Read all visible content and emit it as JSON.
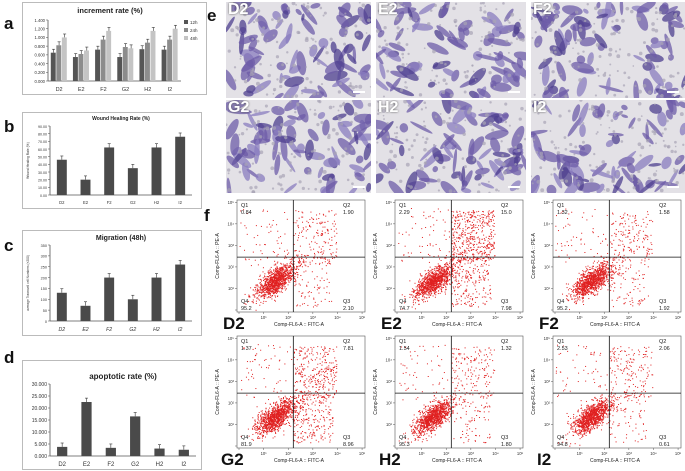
{
  "letters": {
    "a": "a",
    "b": "b",
    "c": "c",
    "d": "d",
    "e": "e",
    "f": "f"
  },
  "chart_data": [
    {
      "type": "bar",
      "title": "increment rate  (%)",
      "categories": [
        "D2",
        "E2",
        "F2",
        "G2",
        "H2",
        "I2"
      ],
      "series": [
        {
          "name": "12h",
          "values": [
            0.65,
            0.55,
            0.72,
            0.55,
            0.73,
            0.72
          ],
          "color": "#555555"
        },
        {
          "name": "24h",
          "values": [
            0.82,
            0.62,
            0.95,
            0.78,
            0.88,
            0.95
          ],
          "color": "#8c8c8c"
        },
        {
          "name": "48h",
          "values": [
            1.0,
            0.7,
            1.15,
            0.75,
            1.15,
            1.2
          ],
          "color": "#c4c4c4"
        }
      ],
      "yticks": [
        "0.000",
        "0.200",
        "0.400",
        "0.600",
        "0.800",
        "1.000",
        "1.200",
        "1.400"
      ],
      "ylim": [
        0,
        1.4
      ]
    },
    {
      "type": "bar",
      "title": "Wound Healing Rate  (%)",
      "ylabel": "Wound Healing Rate (%)",
      "categories": [
        "D2",
        "E2",
        "F2",
        "G2",
        "H2",
        "I2"
      ],
      "values": [
        46,
        20,
        62,
        35,
        62,
        76
      ],
      "yticks": [
        "0.00",
        "10.00",
        "20.00",
        "30.00",
        "40.00",
        "50.00",
        "60.00",
        "70.00",
        "80.00",
        "90.00"
      ],
      "ylim": [
        0,
        90
      ]
    },
    {
      "type": "bar",
      "title": "Migration (48h)",
      "ylabel": "average Transwell cell Numbers (×200)",
      "categories": [
        "D2",
        "E2",
        "F2",
        "G2",
        "H2",
        "I2"
      ],
      "values": [
        130,
        70,
        200,
        100,
        200,
        260
      ],
      "yticks": [
        "0",
        "50",
        "100",
        "150",
        "200",
        "250",
        "300",
        "350"
      ],
      "ylim": [
        0,
        350
      ]
    },
    {
      "type": "bar",
      "title": "apoptotic rate  (%)",
      "categories": [
        "D2",
        "E2",
        "F2",
        "G2",
        "H2",
        "I2"
      ],
      "values": [
        3.8,
        22.5,
        3.4,
        16.5,
        3.1,
        2.6
      ],
      "yticks": [
        "0.000",
        "5.000",
        "10.000",
        "15.000",
        "20.000",
        "25.000",
        "30.000"
      ],
      "ylim": [
        0,
        30
      ]
    }
  ],
  "micrographs": [
    {
      "label": "D2"
    },
    {
      "label": "E2"
    },
    {
      "label": "F2"
    },
    {
      "label": "G2"
    },
    {
      "label": "H2"
    },
    {
      "label": "I2"
    }
  ],
  "flow": {
    "xlabel": "Comp-FL6-A :: FITC-A",
    "ylabel": "Comp-FL6-A :: PE-A",
    "plots": [
      {
        "name": "D2",
        "q1": "0.84",
        "q2": "1.90",
        "q3": "2.10",
        "q4": "95.2"
      },
      {
        "name": "E2",
        "q1": "2.29",
        "q2": "15.0",
        "q3": "7.98",
        "q4": "74.7"
      },
      {
        "name": "F2",
        "q1": "1.32",
        "q2": "1.58",
        "q3": "1.92",
        "q4": "95.2"
      },
      {
        "name": "G2",
        "q1": "1.37",
        "q2": "7.81",
        "q3": "8.96",
        "q4": "81.9"
      },
      {
        "name": "H2",
        "q1": "1.54",
        "q2": "1.32",
        "q3": "1.80",
        "q4": "95.3"
      },
      {
        "name": "I2",
        "q1": "2.53",
        "q2": "2.06",
        "q3": "0.61",
        "q4": "94.8"
      }
    ]
  }
}
